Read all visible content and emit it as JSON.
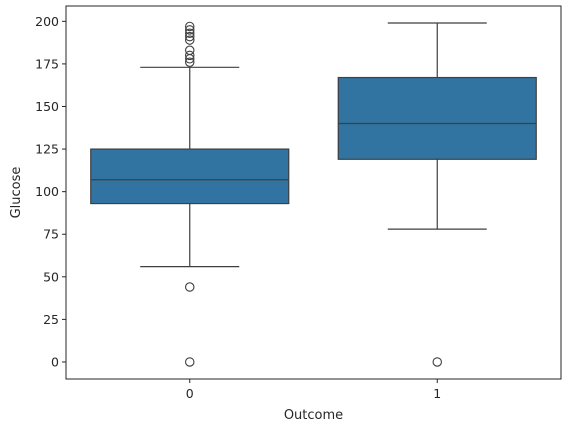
{
  "chart_data": {
    "type": "boxplot",
    "title": "",
    "xlabel": "Outcome",
    "ylabel": "Glucose",
    "ylim": [
      -10,
      209
    ],
    "yticks": [
      0,
      25,
      50,
      75,
      100,
      125,
      150,
      175,
      200
    ],
    "categories": [
      "0",
      "1"
    ],
    "box_color": "#3274a1",
    "line_color": "#3f3f3f",
    "grid": false,
    "legend": "none",
    "boxes": [
      {
        "category": "0",
        "whisker_low": 56,
        "q1": 93,
        "median": 107,
        "q3": 125,
        "whisker_high": 173,
        "outliers": [
          0,
          44,
          176,
          178,
          180,
          183,
          189,
          191,
          193,
          195,
          197
        ]
      },
      {
        "category": "1",
        "whisker_low": 78,
        "q1": 119,
        "median": 140,
        "q3": 167,
        "whisker_high": 199,
        "outliers": [
          0
        ]
      }
    ]
  }
}
